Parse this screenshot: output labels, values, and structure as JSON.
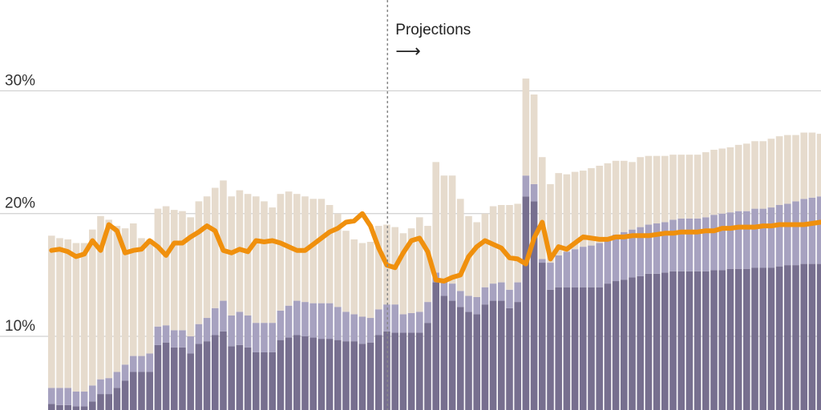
{
  "chart_data": {
    "type": "bar",
    "title": "",
    "xlabel": "",
    "ylabel": "",
    "ylim": [
      4,
      37.4
    ],
    "yticks": [
      {
        "value": 10,
        "label": "10%"
      },
      {
        "value": 20,
        "label": "20%"
      },
      {
        "value": 30,
        "label": "30%"
      }
    ],
    "grid": true,
    "divider_index": 41.5,
    "annotation": {
      "text": "Projections",
      "arrow": "⟶"
    },
    "colors": {
      "bottom": "#776f8f",
      "middle": "#a7a2c0",
      "top": "#e6dbcd",
      "line": "#f0900d",
      "grid": "#d0d0d0",
      "divider": "#888888"
    },
    "series": [
      {
        "name": "bottom",
        "values": [
          4.5,
          4.4,
          4.4,
          4.3,
          4.3,
          4.7,
          5.3,
          5.3,
          5.8,
          6.4,
          7.1,
          7.1,
          7.1,
          9.3,
          9.5,
          9.1,
          9.1,
          8.6,
          9.4,
          9.6,
          10.1,
          10.4,
          9.2,
          9.3,
          9.1,
          8.7,
          8.7,
          8.7,
          9.7,
          9.9,
          10.1,
          10.0,
          9.9,
          9.8,
          9.8,
          9.7,
          9.6,
          9.6,
          9.4,
          9.5,
          10.1,
          10.4,
          10.3,
          10.3,
          10.3,
          10.3,
          11.1,
          14.4,
          13.3,
          12.9,
          12.4,
          12.0,
          11.8,
          12.6,
          12.9,
          12.9,
          12.3,
          12.8,
          21.4,
          21.0,
          16.0,
          13.8,
          14.0,
          14.0,
          14.0,
          14.0,
          14.0,
          14.0,
          14.3,
          14.5,
          14.6,
          14.8,
          14.9,
          15.1,
          15.1,
          15.2,
          15.3,
          15.3,
          15.3,
          15.3,
          15.3,
          15.4,
          15.4,
          15.5,
          15.5,
          15.5,
          15.6,
          15.6,
          15.6,
          15.7,
          15.8,
          15.8,
          15.9,
          15.9,
          15.9,
          16.0
        ]
      },
      {
        "name": "middle",
        "values": [
          1.3,
          1.4,
          1.4,
          1.2,
          1.2,
          1.3,
          1.2,
          1.3,
          1.3,
          1.3,
          1.3,
          1.3,
          1.5,
          1.5,
          1.4,
          1.4,
          1.4,
          1.4,
          1.6,
          1.9,
          2.2,
          2.5,
          2.5,
          2.7,
          2.6,
          2.4,
          2.4,
          2.4,
          2.4,
          2.6,
          2.8,
          2.8,
          2.8,
          2.9,
          2.9,
          2.7,
          2.4,
          2.2,
          2.2,
          2.0,
          2.1,
          2.2,
          2.3,
          1.5,
          1.6,
          1.7,
          1.7,
          0.8,
          1.2,
          1.4,
          1.3,
          1.3,
          1.4,
          1.4,
          1.4,
          1.5,
          1.5,
          1.6,
          1.7,
          1.4,
          0.3,
          2.2,
          2.6,
          2.9,
          3.1,
          3.3,
          3.4,
          3.6,
          3.7,
          3.8,
          3.9,
          3.9,
          4.0,
          4.0,
          4.1,
          4.1,
          4.2,
          4.3,
          4.3,
          4.3,
          4.4,
          4.5,
          4.6,
          4.6,
          4.7,
          4.7,
          4.8,
          4.8,
          4.9,
          5.0,
          5.0,
          5.2,
          5.3,
          5.4,
          5.5,
          5.5
        ]
      },
      {
        "name": "top",
        "values": [
          12.4,
          12.2,
          12.1,
          12.1,
          12.1,
          12.7,
          13.3,
          12.9,
          11.9,
          11.1,
          10.8,
          9.6,
          9.3,
          9.6,
          9.7,
          9.8,
          9.7,
          9.7,
          10.0,
          9.9,
          9.8,
          9.8,
          9.7,
          9.9,
          9.9,
          10.3,
          9.9,
          9.4,
          9.5,
          9.3,
          8.7,
          8.6,
          8.5,
          8.5,
          8.0,
          7.6,
          6.6,
          6.1,
          6.0,
          6.2,
          6.8,
          6.5,
          6.3,
          6.6,
          6.9,
          7.7,
          6.2,
          9.0,
          8.6,
          8.8,
          7.5,
          6.5,
          6.1,
          6.0,
          6.3,
          6.3,
          6.9,
          6.4,
          7.9,
          7.3,
          8.3,
          6.4,
          6.7,
          6.3,
          6.3,
          6.2,
          6.3,
          6.3,
          6.1,
          6.0,
          5.8,
          5.5,
          5.7,
          5.6,
          5.5,
          5.4,
          5.3,
          5.2,
          5.2,
          5.2,
          5.3,
          5.3,
          5.3,
          5.3,
          5.4,
          5.5,
          5.5,
          5.5,
          5.6,
          5.6,
          5.6,
          5.4,
          5.4,
          5.3,
          5.1,
          5.1
        ]
      },
      {
        "name": "line",
        "values": [
          17.0,
          17.1,
          16.9,
          16.5,
          16.7,
          17.8,
          17.0,
          19.1,
          18.6,
          16.8,
          17.0,
          17.1,
          17.8,
          17.3,
          16.6,
          17.6,
          17.6,
          18.1,
          18.5,
          19.0,
          18.6,
          17.0,
          16.8,
          17.1,
          16.9,
          17.8,
          17.7,
          17.8,
          17.6,
          17.3,
          17.0,
          17.0,
          17.5,
          18.0,
          18.5,
          18.8,
          19.3,
          19.4,
          20.0,
          19.0,
          17.2,
          15.8,
          15.6,
          16.8,
          17.8,
          18.0,
          16.9,
          14.6,
          14.5,
          14.8,
          15.0,
          16.5,
          17.3,
          17.8,
          17.5,
          17.2,
          16.4,
          16.3,
          15.9,
          18.0,
          19.3,
          16.3,
          17.3,
          17.1,
          17.6,
          18.1,
          18.0,
          17.9,
          17.9,
          18.1,
          18.1,
          18.2,
          18.2,
          18.2,
          18.3,
          18.4,
          18.4,
          18.5,
          18.5,
          18.5,
          18.6,
          18.6,
          18.8,
          18.8,
          18.9,
          18.9,
          18.9,
          19.0,
          19.0,
          19.1,
          19.1,
          19.1,
          19.1,
          19.2,
          19.3,
          19.3
        ]
      }
    ]
  }
}
